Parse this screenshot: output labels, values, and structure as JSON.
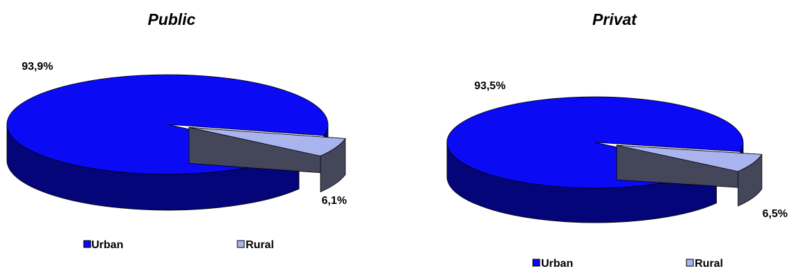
{
  "colors": {
    "urban_top": "#0a0af5",
    "urban_side": "#05057a",
    "rural_top": "#a9b3ee",
    "rural_side": "#44465a",
    "edge": "#000000"
  },
  "chart_data": [
    {
      "type": "pie",
      "style": "3d-exploded",
      "title": "Public",
      "categories": [
        "Urban",
        "Rural"
      ],
      "values": [
        93.9,
        6.1
      ],
      "labels": [
        "93,9%",
        "6,1%"
      ],
      "legend": {
        "position": "bottom",
        "entries": [
          "Urban",
          "Rural"
        ]
      }
    },
    {
      "type": "pie",
      "style": "3d-exploded",
      "title": "Privat",
      "categories": [
        "Urban",
        "Rural"
      ],
      "values": [
        93.5,
        6.5
      ],
      "labels": [
        "93,5%",
        "6,5%"
      ],
      "legend": {
        "position": "bottom",
        "entries": [
          "Urban",
          "Rural"
        ]
      }
    }
  ]
}
